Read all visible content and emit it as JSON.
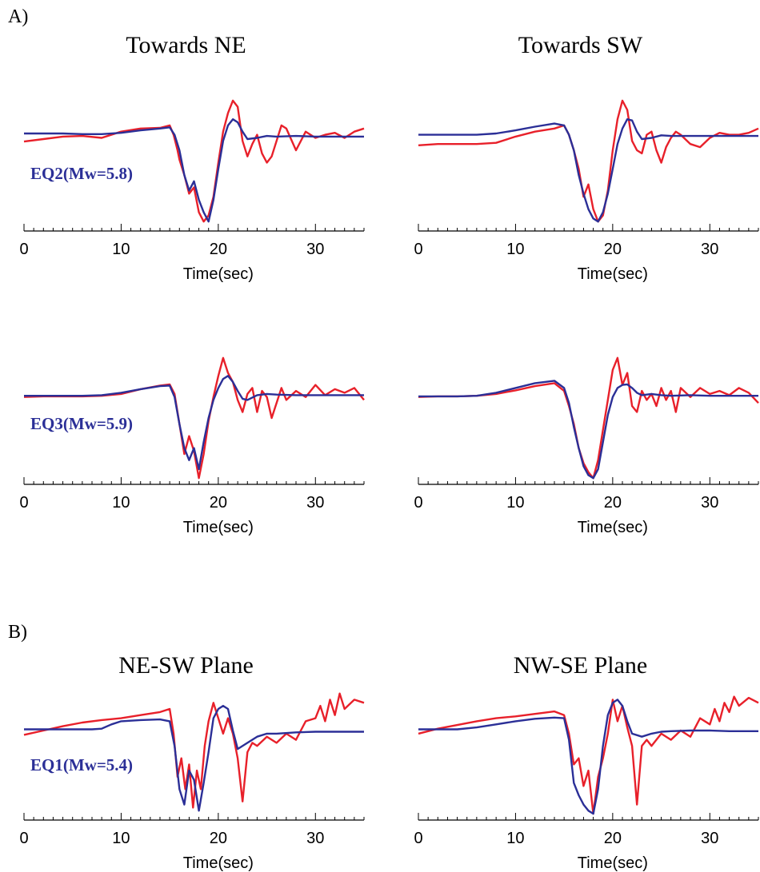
{
  "sections": [
    {
      "label": "A)"
    },
    {
      "label": "B)"
    }
  ],
  "colors": {
    "observed": "#e8202a",
    "synthetic": "#2b2f97",
    "axis": "#000000"
  },
  "chart_data": [
    {
      "type": "line",
      "title": "Towards NE",
      "annotation": "EQ2(Mw=5.8)",
      "xlabel": "Time(sec)",
      "xlim": [
        0,
        35
      ],
      "xticks": [
        0,
        10,
        20,
        30
      ],
      "ylim": [
        -1.05,
        1.05
      ],
      "series": [
        {
          "color": "#e8202a",
          "x": [
            0,
            2,
            4,
            6,
            8,
            10,
            12,
            14,
            15,
            15.4,
            15.8,
            16,
            16.5,
            17,
            17.5,
            18,
            18.5,
            19,
            19.5,
            20,
            20.5,
            21,
            21.5,
            22,
            22.5,
            23,
            23.5,
            24,
            24.5,
            25,
            25.5,
            26,
            26.5,
            27,
            28,
            29,
            30,
            31,
            32,
            33,
            34,
            35
          ],
          "y": [
            0.34,
            0.38,
            0.42,
            0.43,
            0.4,
            0.5,
            0.55,
            0.56,
            0.6,
            0.45,
            0.2,
            0.05,
            -0.2,
            -0.5,
            -0.4,
            -0.8,
            -0.95,
            -0.85,
            -0.55,
            0.0,
            0.5,
            0.8,
            1.0,
            0.9,
            0.35,
            0.1,
            0.3,
            0.45,
            0.15,
            0.0,
            0.1,
            0.35,
            0.6,
            0.55,
            0.2,
            0.5,
            0.4,
            0.45,
            0.48,
            0.4,
            0.5,
            0.55
          ]
        },
        {
          "color": "#2b2f97",
          "x": [
            0,
            2,
            4,
            6,
            8,
            10,
            12,
            14,
            15,
            15.5,
            16,
            16.5,
            17,
            17.5,
            18,
            18.5,
            19,
            19.5,
            20,
            20.5,
            21,
            21.5,
            22,
            22.5,
            23,
            24,
            25,
            26,
            28,
            30,
            32,
            35
          ],
          "y": [
            0.47,
            0.47,
            0.47,
            0.46,
            0.46,
            0.48,
            0.52,
            0.55,
            0.57,
            0.45,
            0.2,
            -0.2,
            -0.45,
            -0.3,
            -0.6,
            -0.8,
            -0.95,
            -0.6,
            -0.1,
            0.35,
            0.6,
            0.7,
            0.65,
            0.5,
            0.38,
            0.4,
            0.43,
            0.42,
            0.43,
            0.42,
            0.42,
            0.42
          ]
        }
      ]
    },
    {
      "type": "line",
      "title": "Towards SW",
      "annotation": "",
      "xlabel": "Time(sec)",
      "xlim": [
        0,
        35
      ],
      "xticks": [
        0,
        10,
        20,
        30
      ],
      "ylim": [
        -1.05,
        1.05
      ],
      "series": [
        {
          "color": "#e8202a",
          "x": [
            0,
            2,
            4,
            6,
            8,
            10,
            12,
            14,
            15,
            15.5,
            16,
            16.5,
            17,
            17.5,
            18,
            18.5,
            19,
            19.5,
            20,
            20.5,
            21,
            21.5,
            22,
            22.5,
            23,
            23.5,
            24,
            24.5,
            25,
            25.5,
            26,
            26.5,
            27,
            28,
            29,
            30,
            31,
            32,
            33,
            34,
            35
          ],
          "y": [
            0.28,
            0.3,
            0.3,
            0.3,
            0.32,
            0.42,
            0.5,
            0.55,
            0.6,
            0.45,
            0.2,
            -0.1,
            -0.55,
            -0.35,
            -0.75,
            -0.95,
            -0.85,
            -0.45,
            0.2,
            0.7,
            1.0,
            0.85,
            0.35,
            0.2,
            0.15,
            0.45,
            0.5,
            0.2,
            0.0,
            0.25,
            0.4,
            0.5,
            0.45,
            0.3,
            0.25,
            0.4,
            0.48,
            0.45,
            0.45,
            0.48,
            0.55
          ]
        },
        {
          "color": "#2b2f97",
          "x": [
            0,
            2,
            4,
            6,
            8,
            10,
            12,
            14,
            15,
            15.5,
            16,
            16.5,
            17,
            17.5,
            18,
            18.5,
            19,
            19.5,
            20,
            20.5,
            21,
            21.5,
            22,
            22.5,
            23,
            24,
            25,
            26,
            28,
            30,
            32,
            35
          ],
          "y": [
            0.45,
            0.45,
            0.45,
            0.45,
            0.47,
            0.52,
            0.58,
            0.63,
            0.6,
            0.45,
            0.2,
            -0.2,
            -0.5,
            -0.75,
            -0.9,
            -0.95,
            -0.8,
            -0.5,
            -0.1,
            0.3,
            0.55,
            0.7,
            0.68,
            0.5,
            0.38,
            0.4,
            0.44,
            0.43,
            0.43,
            0.43,
            0.43,
            0.43
          ]
        }
      ]
    },
    {
      "type": "line",
      "title": "",
      "annotation": "EQ3(Mw=5.9)",
      "xlabel": "Time(sec)",
      "xlim": [
        0,
        35
      ],
      "xticks": [
        0,
        10,
        20,
        30
      ],
      "ylim": [
        -1.05,
        1.05
      ],
      "series": [
        {
          "color": "#e8202a",
          "x": [
            0,
            2,
            4,
            6,
            8,
            10,
            12,
            14,
            15,
            15.5,
            16,
            16.5,
            17,
            17.5,
            18,
            18.5,
            19,
            19.5,
            20,
            20.5,
            21,
            21.5,
            22,
            22.5,
            23,
            23.5,
            24,
            24.5,
            25,
            25.5,
            26,
            26.5,
            27,
            28,
            29,
            30,
            31,
            32,
            33,
            34,
            35
          ],
          "y": [
            0.35,
            0.36,
            0.36,
            0.36,
            0.37,
            0.4,
            0.48,
            0.54,
            0.56,
            0.4,
            -0.1,
            -0.6,
            -0.3,
            -0.55,
            -1.0,
            -0.6,
            -0.05,
            0.35,
            0.7,
            1.0,
            0.75,
            0.6,
            0.3,
            0.1,
            0.4,
            0.5,
            0.1,
            0.45,
            0.35,
            0.0,
            0.25,
            0.5,
            0.3,
            0.45,
            0.35,
            0.55,
            0.38,
            0.48,
            0.42,
            0.5,
            0.3
          ]
        },
        {
          "color": "#2b2f97",
          "x": [
            0,
            2,
            4,
            6,
            8,
            10,
            12,
            14,
            15,
            15.5,
            16,
            16.5,
            17,
            17.5,
            18,
            18.5,
            19,
            19.5,
            20,
            20.5,
            21,
            21.5,
            22,
            22.5,
            23,
            24,
            25,
            26,
            28,
            30,
            32,
            35
          ],
          "y": [
            0.37,
            0.37,
            0.37,
            0.37,
            0.38,
            0.42,
            0.48,
            0.53,
            0.54,
            0.35,
            -0.1,
            -0.5,
            -0.7,
            -0.5,
            -0.85,
            -0.4,
            0.0,
            0.3,
            0.5,
            0.65,
            0.7,
            0.6,
            0.45,
            0.32,
            0.3,
            0.38,
            0.4,
            0.39,
            0.38,
            0.38,
            0.38,
            0.38
          ]
        }
      ]
    },
    {
      "type": "line",
      "title": "",
      "annotation": "",
      "xlabel": "Time(sec)",
      "xlim": [
        0,
        35
      ],
      "xticks": [
        0,
        10,
        20,
        30
      ],
      "ylim": [
        -1.05,
        1.05
      ],
      "series": [
        {
          "color": "#e8202a",
          "x": [
            0,
            2,
            4,
            6,
            8,
            10,
            12,
            14,
            15,
            15.5,
            16,
            16.5,
            17,
            17.5,
            18,
            18.5,
            19,
            19.5,
            20,
            20.5,
            21,
            21.5,
            22,
            22.5,
            23,
            23.5,
            24,
            24.5,
            25,
            25.5,
            26,
            26.5,
            27,
            28,
            29,
            30,
            31,
            32,
            33,
            34,
            35
          ],
          "y": [
            0.35,
            0.36,
            0.36,
            0.37,
            0.4,
            0.46,
            0.53,
            0.58,
            0.45,
            0.2,
            -0.1,
            -0.5,
            -0.75,
            -0.9,
            -1.0,
            -0.7,
            -0.2,
            0.3,
            0.8,
            1.0,
            0.55,
            0.75,
            0.2,
            0.1,
            0.45,
            0.3,
            0.4,
            0.2,
            0.5,
            0.3,
            0.45,
            0.1,
            0.5,
            0.35,
            0.5,
            0.4,
            0.45,
            0.38,
            0.5,
            0.42,
            0.25
          ]
        },
        {
          "color": "#2b2f97",
          "x": [
            0,
            2,
            4,
            6,
            8,
            10,
            12,
            14,
            15,
            15.5,
            16,
            16.5,
            17,
            17.5,
            18,
            18.5,
            19,
            19.5,
            20,
            20.5,
            21,
            21.5,
            22,
            22.5,
            23,
            24,
            25,
            26,
            28,
            30,
            32,
            35
          ],
          "y": [
            0.36,
            0.36,
            0.36,
            0.37,
            0.42,
            0.5,
            0.58,
            0.62,
            0.5,
            0.25,
            -0.15,
            -0.5,
            -0.8,
            -0.95,
            -1.0,
            -0.85,
            -0.4,
            0.05,
            0.35,
            0.5,
            0.55,
            0.56,
            0.5,
            0.42,
            0.38,
            0.4,
            0.38,
            0.37,
            0.38,
            0.37,
            0.37,
            0.37
          ]
        }
      ]
    },
    {
      "type": "line",
      "title": "NE-SW Plane",
      "annotation": "EQ1(Mw=5.4)",
      "xlabel": "Time(sec)",
      "xlim": [
        0,
        35
      ],
      "xticks": [
        0,
        10,
        20,
        30
      ],
      "ylim": [
        -1.05,
        1.05
      ],
      "series": [
        {
          "color": "#e8202a",
          "x": [
            0,
            2,
            4,
            6,
            8,
            10,
            12,
            14,
            15,
            15.4,
            15.8,
            16.2,
            16.6,
            17,
            17.4,
            17.8,
            18.2,
            18.6,
            19,
            19.5,
            20,
            20.5,
            21,
            21.5,
            22,
            22.5,
            23,
            23.5,
            24,
            25,
            26,
            27,
            28,
            29,
            30,
            30.5,
            31,
            31.5,
            32,
            32.5,
            33,
            34,
            35
          ],
          "y": [
            0.28,
            0.35,
            0.42,
            0.48,
            0.52,
            0.55,
            0.6,
            0.65,
            0.7,
            0.3,
            -0.4,
            -0.1,
            -0.6,
            -0.2,
            -0.9,
            -0.3,
            -0.6,
            0.1,
            0.5,
            0.8,
            0.55,
            0.3,
            0.55,
            0.3,
            -0.1,
            -0.8,
            0.0,
            0.15,
            0.1,
            0.25,
            0.15,
            0.3,
            0.2,
            0.5,
            0.55,
            0.75,
            0.5,
            0.85,
            0.6,
            0.95,
            0.7,
            0.85,
            0.8
          ]
        },
        {
          "color": "#2b2f97",
          "x": [
            0,
            2,
            4,
            6,
            7,
            8,
            9,
            10,
            12,
            14,
            15,
            15.5,
            16,
            16.5,
            17,
            17.5,
            18,
            18.5,
            19,
            19.5,
            20,
            20.5,
            21,
            21.5,
            22,
            23,
            24,
            25,
            26,
            28,
            30,
            32,
            35
          ],
          "y": [
            0.37,
            0.37,
            0.37,
            0.37,
            0.37,
            0.38,
            0.45,
            0.5,
            0.52,
            0.53,
            0.5,
            0.1,
            -0.6,
            -0.85,
            -0.3,
            -0.45,
            -0.95,
            -0.5,
            0.0,
            0.55,
            0.7,
            0.75,
            0.7,
            0.35,
            0.05,
            0.15,
            0.25,
            0.3,
            0.3,
            0.32,
            0.33,
            0.33,
            0.33
          ]
        }
      ]
    },
    {
      "type": "line",
      "title": "NW-SE Plane",
      "annotation": "",
      "xlabel": "Time(sec)",
      "xlim": [
        0,
        35
      ],
      "xticks": [
        0,
        10,
        20,
        30
      ],
      "ylim": [
        -1.05,
        1.05
      ],
      "series": [
        {
          "color": "#e8202a",
          "x": [
            0,
            2,
            4,
            6,
            8,
            10,
            12,
            14,
            15,
            15.5,
            16,
            16.5,
            17,
            17.5,
            18,
            18.5,
            19,
            19.5,
            20,
            20.5,
            21,
            21.5,
            22,
            22.5,
            23,
            23.5,
            24,
            25,
            26,
            27,
            28,
            29,
            30,
            30.5,
            31,
            31.5,
            32,
            32.5,
            33,
            34,
            35
          ],
          "y": [
            0.3,
            0.38,
            0.44,
            0.5,
            0.55,
            0.58,
            0.62,
            0.66,
            0.6,
            0.3,
            -0.2,
            -0.1,
            -0.55,
            -0.3,
            -1.0,
            -0.4,
            -0.1,
            0.3,
            0.85,
            0.5,
            0.75,
            0.4,
            0.1,
            -0.85,
            0.1,
            0.2,
            0.1,
            0.3,
            0.2,
            0.35,
            0.25,
            0.55,
            0.45,
            0.7,
            0.5,
            0.8,
            0.65,
            0.9,
            0.75,
            0.88,
            0.8
          ]
        },
        {
          "color": "#2b2f97",
          "x": [
            0,
            2,
            4,
            6,
            8,
            10,
            12,
            14,
            15,
            15.5,
            16,
            16.5,
            17,
            17.5,
            18,
            18.5,
            19,
            19.5,
            20,
            20.5,
            21,
            21.5,
            22,
            23,
            24,
            25,
            26,
            28,
            30,
            32,
            35
          ],
          "y": [
            0.37,
            0.37,
            0.37,
            0.4,
            0.45,
            0.5,
            0.54,
            0.56,
            0.55,
            0.2,
            -0.5,
            -0.7,
            -0.85,
            -0.95,
            -1.0,
            -0.6,
            0.1,
            0.6,
            0.8,
            0.85,
            0.75,
            0.5,
            0.3,
            0.25,
            0.3,
            0.33,
            0.34,
            0.35,
            0.35,
            0.34,
            0.34
          ]
        }
      ]
    }
  ]
}
